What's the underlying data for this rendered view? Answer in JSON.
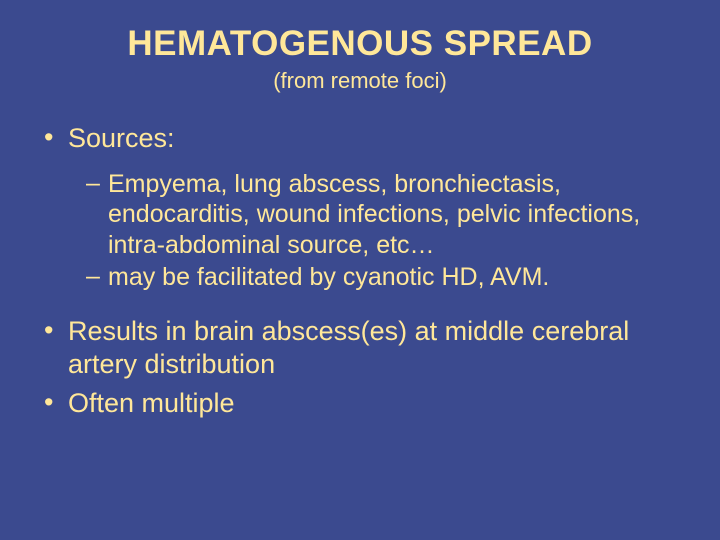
{
  "colors": {
    "background": "#3b4a8f",
    "text": "#ffe799"
  },
  "typography": {
    "title_fontsize": 35,
    "title_fontweight": "bold",
    "subtitle_fontsize": 22,
    "body_fontsize": 27,
    "sub_fontsize": 25,
    "font_family": "Arial"
  },
  "title": "HEMATOGENOUS SPREAD",
  "subtitle": "(from remote foci)",
  "bullets": [
    {
      "text": "Sources:",
      "sub": [
        "Empyema, lung abscess, bronchiectasis, endocarditis, wound infections, pelvic infections, intra-abdominal source, etc…",
        " may be facilitated by cyanotic HD, AVM."
      ]
    },
    {
      "text": "Results in brain abscess(es) at middle cerebral artery distribution",
      "sub": []
    },
    {
      "text": "Often multiple",
      "sub": []
    }
  ]
}
